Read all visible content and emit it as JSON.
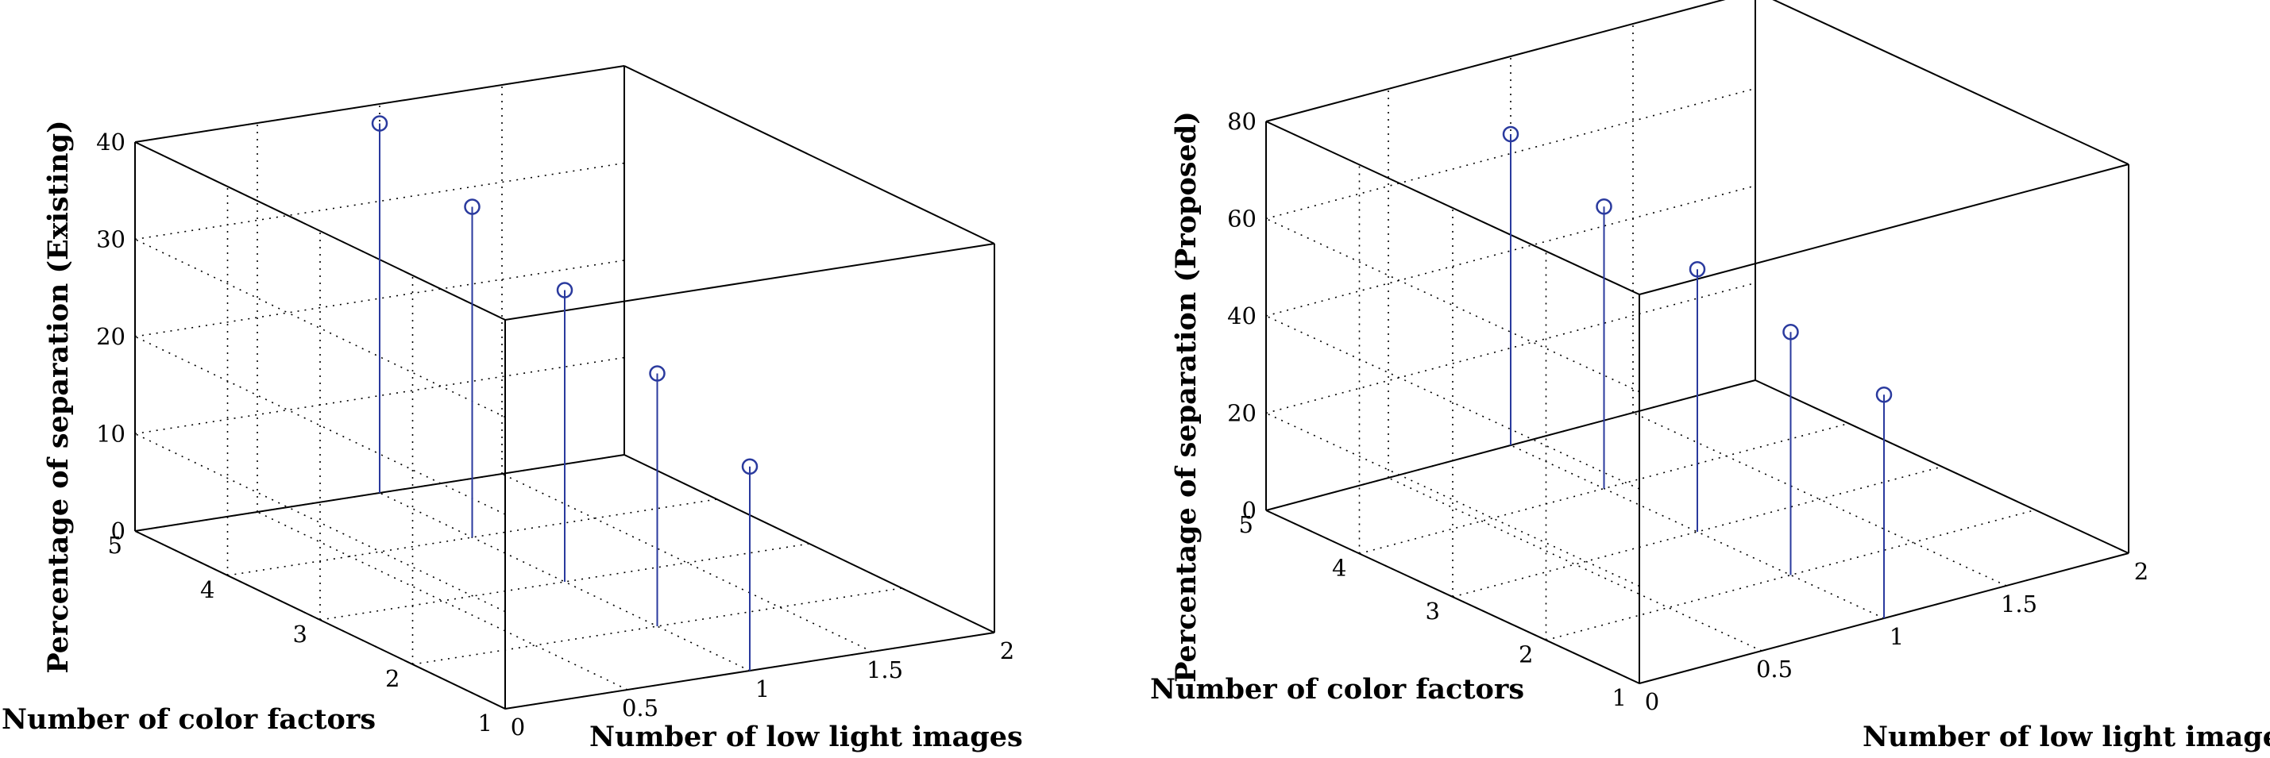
{
  "colors": {
    "stem": "#2a3a9e",
    "marker": "#2a3a9e",
    "frame": "#000000",
    "grid": "#000000"
  },
  "chart_data": [
    {
      "type": "stem3",
      "xlabel": "Number of low light images",
      "ylabel": "Number of color factors",
      "zlabel": "Percentage of separation (Existing)",
      "xlim": [
        0,
        2
      ],
      "ylim": [
        1,
        5
      ],
      "zlim": [
        0,
        40
      ],
      "xticks": [
        "0",
        "0.5",
        "1",
        "1.5",
        "2"
      ],
      "yticks": [
        "1",
        "2",
        "3",
        "4",
        "5"
      ],
      "zticks": [
        "0",
        "10",
        "20",
        "30",
        "40"
      ],
      "grid": true,
      "points": [
        {
          "x": 1,
          "y": 5,
          "z": 38
        },
        {
          "x": 1,
          "y": 4,
          "z": 34
        },
        {
          "x": 1,
          "y": 3,
          "z": 30
        },
        {
          "x": 1,
          "y": 2,
          "z": 26
        },
        {
          "x": 1,
          "y": 1,
          "z": 21
        }
      ]
    },
    {
      "type": "stem3",
      "xlabel": "Number of low light images",
      "ylabel": "Number of color factors",
      "zlabel": "Percentage of separation (Proposed)",
      "xlim": [
        0,
        2
      ],
      "ylim": [
        1,
        5
      ],
      "zlim": [
        0,
        80
      ],
      "xticks": [
        "0",
        "0.5",
        "1",
        "1.5",
        "2"
      ],
      "yticks": [
        "1",
        "2",
        "3",
        "4",
        "5"
      ],
      "zticks": [
        "0",
        "20",
        "40",
        "60",
        "80"
      ],
      "grid": true,
      "points": [
        {
          "x": 1,
          "y": 5,
          "z": 64
        },
        {
          "x": 1,
          "y": 4,
          "z": 58
        },
        {
          "x": 1,
          "y": 3,
          "z": 54
        },
        {
          "x": 1,
          "y": 2,
          "z": 50
        },
        {
          "x": 1,
          "y": 1,
          "z": 46
        }
      ]
    }
  ]
}
